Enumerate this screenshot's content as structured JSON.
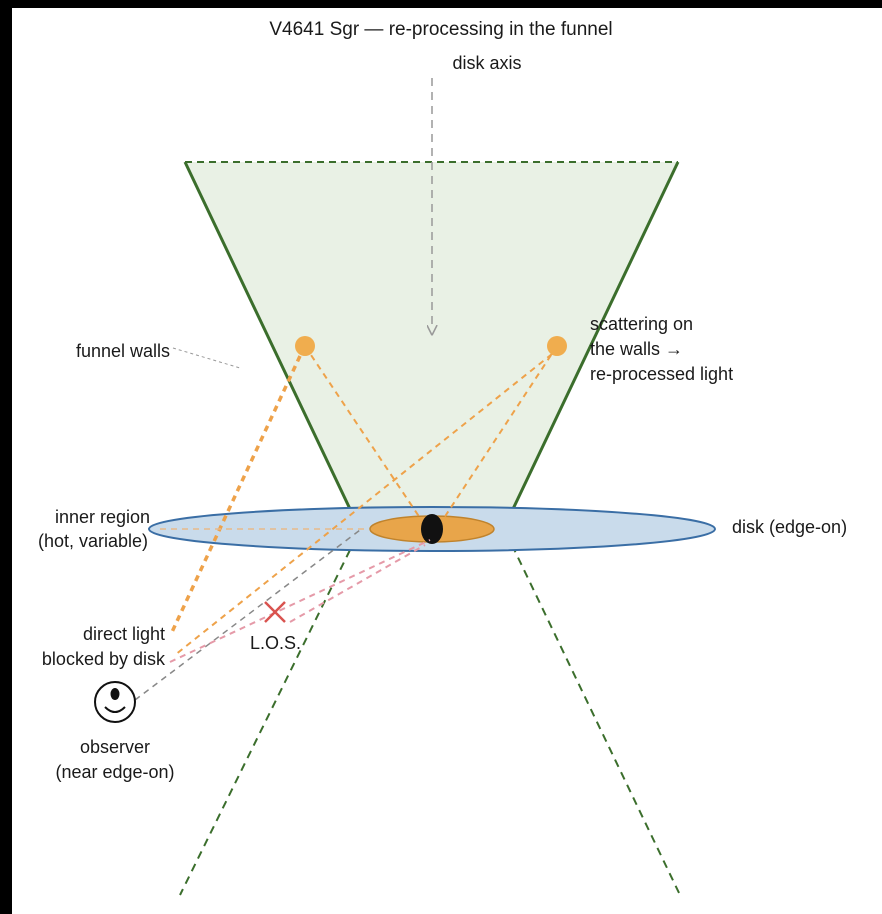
{
  "title": "V4641 Sgr — re-processing in the funnel",
  "labels": {
    "disk_axis": "disk axis",
    "funnel_walls": "funnel walls",
    "scattering": [
      "scattering on",
      "the walls →",
      "re-processed light"
    ],
    "inner_region": [
      "inner region",
      "(hot, variable)"
    ],
    "disk": "disk (edge-on)",
    "direct_light": [
      "direct light",
      "blocked by disk"
    ],
    "los": "L.O.S.",
    "observer": [
      "observer",
      "(near edge-on)"
    ]
  }
}
